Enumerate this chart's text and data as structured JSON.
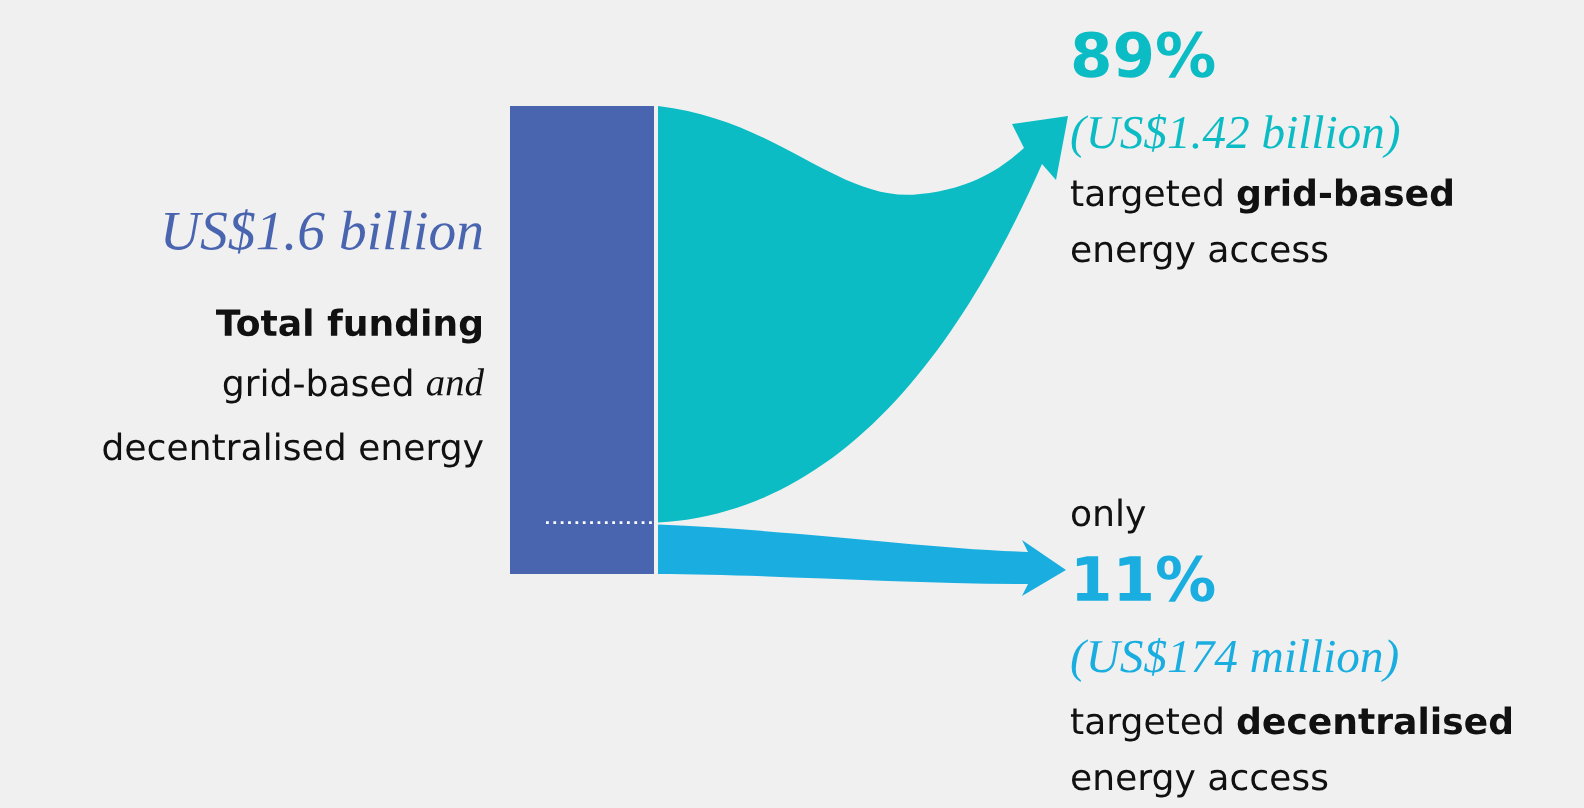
{
  "chart_data": {
    "type": "other",
    "title": "US$1.6 billion",
    "values": [
      89,
      11
    ],
    "value_labels": [
      "89%",
      "11%"
    ],
    "colors": [
      "#0bbcc4",
      "#1aaee0"
    ],
    "annotations": [
      "Total funding",
      "grid-based",
      "and",
      "decentralised energy",
      "(US$1.42 billion)",
      "targeted",
      "grid-based",
      "energy access",
      "only",
      "(US$174 million)",
      "targeted",
      "decentralised",
      "energy access"
    ]
  }
}
